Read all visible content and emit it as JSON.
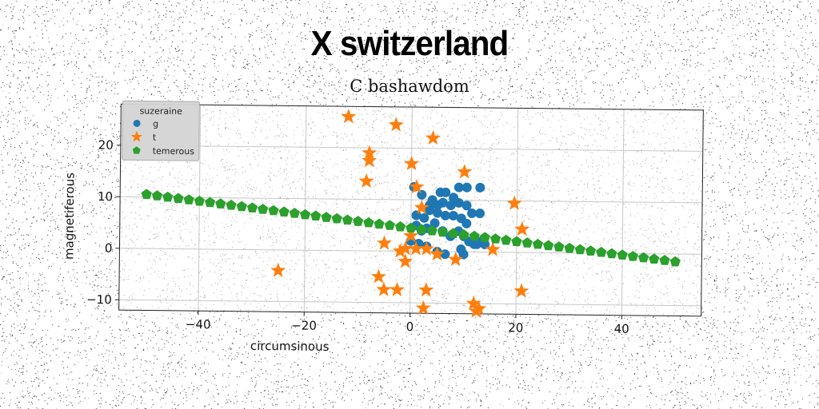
{
  "title": "X switzerland",
  "subtitle": "C bashawdom",
  "chart_data": {
    "type": "scatter",
    "xlabel": "circumsinous",
    "ylabel": "magnetiferous",
    "xlim": [
      -55,
      55
    ],
    "ylim": [
      -12,
      28
    ],
    "xticks": [
      -40,
      -20,
      0,
      20,
      40
    ],
    "yticks": [
      -10,
      0,
      10,
      20
    ],
    "grid": true,
    "legend": {
      "title": "suzeraine",
      "position": "top-left"
    },
    "colors": {
      "g": "#1f77b4",
      "t": "#ff7f0e",
      "temerous": "#2ca02c"
    },
    "series": [
      {
        "name": "g",
        "marker": "circle",
        "points": [
          [
            0.5,
            12.5
          ],
          [
            2,
            11
          ],
          [
            4,
            10
          ],
          [
            5.5,
            11.5
          ],
          [
            6.5,
            11.5
          ],
          [
            8,
            10.5
          ],
          [
            9,
            12.5
          ],
          [
            10.5,
            12.5
          ],
          [
            13,
            12.5
          ],
          [
            3.5,
            9
          ],
          [
            5,
            9
          ],
          [
            6,
            9.5
          ],
          [
            7.5,
            9
          ],
          [
            9,
            9.5
          ],
          [
            10.5,
            9
          ],
          [
            11.5,
            7.5
          ],
          [
            13,
            7.5
          ],
          [
            1,
            7
          ],
          [
            2.5,
            6.5
          ],
          [
            3.5,
            8
          ],
          [
            5,
            7.5
          ],
          [
            6.5,
            7
          ],
          [
            8,
            7
          ],
          [
            9.5,
            6.5
          ],
          [
            10.5,
            5.5
          ],
          [
            1,
            5
          ],
          [
            2,
            4
          ],
          [
            3,
            4.5
          ],
          [
            4.5,
            5.5
          ],
          [
            6,
            4
          ],
          [
            7.5,
            3
          ],
          [
            9,
            4
          ],
          [
            10,
            3
          ],
          [
            11,
            2
          ],
          [
            12,
            1.5
          ],
          [
            13,
            2
          ],
          [
            14,
            1.5
          ],
          [
            0,
            2
          ],
          [
            1.5,
            1.5
          ],
          [
            3,
            1
          ],
          [
            5,
            0
          ],
          [
            6.5,
            -0.5
          ],
          [
            9.5,
            0.5
          ],
          [
            10,
            -0.5
          ],
          [
            12.5,
            1.5
          ]
        ]
      },
      {
        "name": "t",
        "marker": "star",
        "points": [
          [
            -12,
            26
          ],
          [
            -3,
            24.5
          ],
          [
            4,
            22
          ],
          [
            -8,
            19
          ],
          [
            -8,
            17.5
          ],
          [
            0,
            17
          ],
          [
            10,
            15.5
          ],
          [
            -8.5,
            13.5
          ],
          [
            1,
            12.5
          ],
          [
            19.5,
            9.5
          ],
          [
            2,
            8.5
          ],
          [
            21,
            4.5
          ],
          [
            0,
            3
          ],
          [
            -5,
            1.5
          ],
          [
            15.5,
            0.5
          ],
          [
            -2,
            0
          ],
          [
            -1,
            0.5
          ],
          [
            1,
            0.5
          ],
          [
            3,
            0.5
          ],
          [
            5,
            -0.5
          ],
          [
            -1,
            -2
          ],
          [
            8.5,
            -1.5
          ],
          [
            -6,
            -5
          ],
          [
            -5,
            -7.5
          ],
          [
            -2.5,
            -7.5
          ],
          [
            3,
            -7.5
          ],
          [
            21,
            -7.5
          ],
          [
            -25,
            -4
          ],
          [
            12,
            -10
          ],
          [
            13,
            -11
          ],
          [
            12.5,
            -11.5
          ],
          [
            2.5,
            -11
          ]
        ]
      },
      {
        "name": "temerous",
        "marker": "pentagon",
        "x_start": -50,
        "x_end": 50,
        "x_step": 2,
        "y_start": 10.5,
        "y_end": -1.5
      }
    ]
  }
}
